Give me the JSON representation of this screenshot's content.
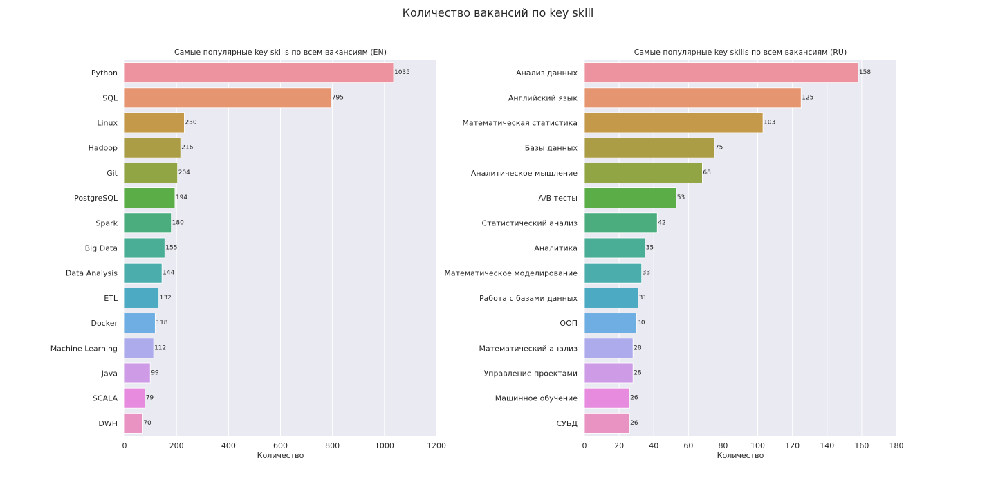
{
  "suptitle": "Количество вакансий по key skill",
  "chart_data": [
    {
      "type": "bar",
      "orientation": "horizontal",
      "title": "Самые популярные key skills по всем вакансиям (EN)",
      "xlabel": "Количество",
      "ylabel": "",
      "xlim": [
        0,
        1200
      ],
      "xticks": [
        0,
        200,
        400,
        600,
        800,
        1000,
        1200
      ],
      "grid": true,
      "categories": [
        "Python",
        "SQL",
        "Linux",
        "Hadoop",
        "Git",
        "PostgreSQL",
        "Spark",
        "Big Data",
        "Data Analysis",
        "ETL",
        "Docker",
        "Machine Learning",
        "Java",
        "SCALA",
        "DWH"
      ],
      "values": [
        1035,
        795,
        230,
        216,
        204,
        194,
        180,
        155,
        144,
        132,
        118,
        112,
        99,
        79,
        70
      ],
      "colors": [
        "#ED939F",
        "#E5956F",
        "#C49A4A",
        "#AB9D45",
        "#92A545",
        "#5BAD48",
        "#4BAC7E",
        "#4AAE97",
        "#4BADAC",
        "#4CABC2",
        "#6EAEE2",
        "#ADABEC",
        "#CE9CE7",
        "#E78BDE",
        "#E893C2"
      ]
    },
    {
      "type": "bar",
      "orientation": "horizontal",
      "title": "Самые популярные key skills по всем вакансиям (RU)",
      "xlabel": "Количество",
      "ylabel": "",
      "xlim": [
        0,
        180
      ],
      "xticks": [
        0,
        20,
        40,
        60,
        80,
        100,
        120,
        140,
        160,
        180
      ],
      "grid": true,
      "categories": [
        "Анализ данных",
        "Английский язык",
        "Математическая статистика",
        "Базы данных",
        "Аналитическое мышление",
        "A/B тесты",
        "Статистический анализ",
        "Аналитика",
        "Математическое моделирование",
        "Работа с базами данных",
        "ООП",
        "Математический анализ",
        "Управление проектами",
        "Машинное обучение",
        "СУБД"
      ],
      "values": [
        158,
        125,
        103,
        75,
        68,
        53,
        42,
        35,
        33,
        31,
        30,
        28,
        28,
        26,
        26
      ],
      "colors": [
        "#ED939F",
        "#E5956F",
        "#C49A4A",
        "#AB9D45",
        "#92A545",
        "#5BAD48",
        "#4BAC7E",
        "#4AAE97",
        "#4BADAC",
        "#4CABC2",
        "#6EAEE2",
        "#ADABEC",
        "#CE9CE7",
        "#E78BDE",
        "#E893C2"
      ]
    }
  ]
}
